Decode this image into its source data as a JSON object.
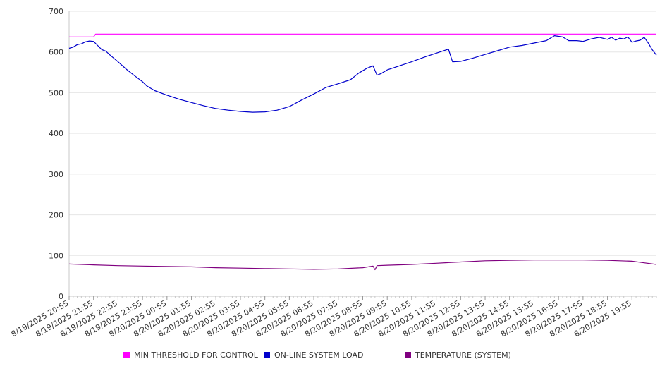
{
  "chart_data": {
    "type": "line",
    "title": "",
    "xlabel": "",
    "ylabel": "",
    "ylim": [
      0,
      700
    ],
    "yticks": [
      0,
      100,
      200,
      300,
      400,
      500,
      600,
      700
    ],
    "grid": true,
    "legend_position": "bottom",
    "x_start": "8/19/2025 20:55",
    "x_end": "8/20/2025 20:55",
    "x_tick_labels": [
      "8/19/2025 20:55",
      "8/19/2025 21:55",
      "8/19/2025 22:55",
      "8/19/2025 23:55",
      "8/20/2025 00:55",
      "8/20/2025 01:55",
      "8/20/2025 02:55",
      "8/20/2025 03:55",
      "8/20/2025 04:55",
      "8/20/2025 05:55",
      "8/20/2025 06:55",
      "8/20/2025 07:55",
      "8/20/2025 08:55",
      "8/20/2025 09:55",
      "8/20/2025 10:55",
      "8/20/2025 11:55",
      "8/20/2025 12:55",
      "8/20/2025 13:55",
      "8/20/2025 14:55",
      "8/20/2025 15:55",
      "8/20/2025 16:55",
      "8/20/2025 17:55",
      "8/20/2025 18:55",
      "8/20/2025 19:55"
    ],
    "series": [
      {
        "name": "MIN THRESHOLD FOR CONTROL",
        "color": "#ff00ff",
        "points": [
          [
            "8/19/2025 20:55",
            637
          ],
          [
            "8/19/2025 21:55",
            637
          ],
          [
            "8/19/2025 22:00",
            644
          ],
          [
            "8/20/2025 20:55",
            644
          ]
        ]
      },
      {
        "name": "ON-LINE SYSTEM LOAD",
        "color": "#0000cc",
        "points": [
          [
            "8/19/2025 20:55",
            609
          ],
          [
            "8/19/2025 21:05",
            612
          ],
          [
            "8/19/2025 21:15",
            618
          ],
          [
            "8/19/2025 21:25",
            620
          ],
          [
            "8/19/2025 21:35",
            625
          ],
          [
            "8/19/2025 21:45",
            627
          ],
          [
            "8/19/2025 21:55",
            626
          ],
          [
            "8/19/2025 22:05",
            616
          ],
          [
            "8/19/2025 22:15",
            606
          ],
          [
            "8/19/2025 22:25",
            602
          ],
          [
            "8/19/2025 22:35",
            593
          ],
          [
            "8/19/2025 22:55",
            576
          ],
          [
            "8/19/2025 23:15",
            558
          ],
          [
            "8/19/2025 23:35",
            542
          ],
          [
            "8/19/2025 23:55",
            527
          ],
          [
            "8/20/2025 00:05",
            517
          ],
          [
            "8/20/2025 00:25",
            505
          ],
          [
            "8/20/2025 00:55",
            494
          ],
          [
            "8/20/2025 01:25",
            484
          ],
          [
            "8/20/2025 01:55",
            476
          ],
          [
            "8/20/2025 02:25",
            468
          ],
          [
            "8/20/2025 02:55",
            461
          ],
          [
            "8/20/2025 03:25",
            457
          ],
          [
            "8/20/2025 03:55",
            454
          ],
          [
            "8/20/2025 04:25",
            452
          ],
          [
            "8/20/2025 04:55",
            453
          ],
          [
            "8/20/2025 05:25",
            457
          ],
          [
            "8/20/2025 05:55",
            466
          ],
          [
            "8/20/2025 06:25",
            482
          ],
          [
            "8/20/2025 06:55",
            497
          ],
          [
            "8/20/2025 07:25",
            513
          ],
          [
            "8/20/2025 07:55",
            522
          ],
          [
            "8/20/2025 08:25",
            532
          ],
          [
            "8/20/2025 08:45",
            548
          ],
          [
            "8/20/2025 09:05",
            560
          ],
          [
            "8/20/2025 09:20",
            566
          ],
          [
            "8/20/2025 09:30",
            543
          ],
          [
            "8/20/2025 09:40",
            547
          ],
          [
            "8/20/2025 09:55",
            556
          ],
          [
            "8/20/2025 10:25",
            566
          ],
          [
            "8/20/2025 10:55",
            576
          ],
          [
            "8/20/2025 11:25",
            587
          ],
          [
            "8/20/2025 11:55",
            597
          ],
          [
            "8/20/2025 12:10",
            602
          ],
          [
            "8/20/2025 12:25",
            607
          ],
          [
            "8/20/2025 12:35",
            576
          ],
          [
            "8/20/2025 12:55",
            577
          ],
          [
            "8/20/2025 13:25",
            585
          ],
          [
            "8/20/2025 13:55",
            594
          ],
          [
            "8/20/2025 14:25",
            603
          ],
          [
            "8/20/2025 14:55",
            612
          ],
          [
            "8/20/2025 15:25",
            616
          ],
          [
            "8/20/2025 15:55",
            622
          ],
          [
            "8/20/2025 16:25",
            628
          ],
          [
            "8/20/2025 16:45",
            640
          ],
          [
            "8/20/2025 17:05",
            637
          ],
          [
            "8/20/2025 17:20",
            628
          ],
          [
            "8/20/2025 17:40",
            628
          ],
          [
            "8/20/2025 17:55",
            626
          ],
          [
            "8/20/2025 18:15",
            632
          ],
          [
            "8/20/2025 18:35",
            636
          ],
          [
            "8/20/2025 18:55",
            631
          ],
          [
            "8/20/2025 19:05",
            636
          ],
          [
            "8/20/2025 19:15",
            629
          ],
          [
            "8/20/2025 19:25",
            634
          ],
          [
            "8/20/2025 19:35",
            632
          ],
          [
            "8/20/2025 19:45",
            637
          ],
          [
            "8/20/2025 19:55",
            624
          ],
          [
            "8/20/2025 20:05",
            627
          ],
          [
            "8/20/2025 20:15",
            629
          ],
          [
            "8/20/2025 20:25",
            636
          ],
          [
            "8/20/2025 20:35",
            622
          ],
          [
            "8/20/2025 20:45",
            605
          ],
          [
            "8/20/2025 20:55",
            592
          ]
        ]
      },
      {
        "name": "TEMPERATURE (SYSTEM)",
        "color": "#800080",
        "points": [
          [
            "8/19/2025 20:55",
            79
          ],
          [
            "8/19/2025 21:55",
            77
          ],
          [
            "8/19/2025 22:55",
            75
          ],
          [
            "8/19/2025 23:55",
            74
          ],
          [
            "8/20/2025 00:55",
            73
          ],
          [
            "8/20/2025 01:55",
            72
          ],
          [
            "8/20/2025 02:55",
            70
          ],
          [
            "8/20/2025 03:55",
            69
          ],
          [
            "8/20/2025 04:55",
            68
          ],
          [
            "8/20/2025 05:55",
            67
          ],
          [
            "8/20/2025 06:55",
            66
          ],
          [
            "8/20/2025 07:55",
            67
          ],
          [
            "8/20/2025 08:55",
            70
          ],
          [
            "8/20/2025 09:20",
            74
          ],
          [
            "8/20/2025 09:25",
            65
          ],
          [
            "8/20/2025 09:30",
            75
          ],
          [
            "8/20/2025 09:55",
            76
          ],
          [
            "8/20/2025 10:55",
            78
          ],
          [
            "8/20/2025 11:55",
            81
          ],
          [
            "8/20/2025 12:55",
            84
          ],
          [
            "8/20/2025 13:55",
            87
          ],
          [
            "8/20/2025 14:55",
            88
          ],
          [
            "8/20/2025 15:55",
            89
          ],
          [
            "8/20/2025 16:55",
            89
          ],
          [
            "8/20/2025 17:55",
            89
          ],
          [
            "8/20/2025 18:55",
            88
          ],
          [
            "8/20/2025 19:55",
            86
          ],
          [
            "8/20/2025 20:25",
            82
          ],
          [
            "8/20/2025 20:55",
            78
          ]
        ]
      }
    ]
  },
  "legend": {
    "items": [
      {
        "label": "MIN THRESHOLD FOR CONTROL",
        "color": "#ff00ff"
      },
      {
        "label": "ON-LINE SYSTEM LOAD",
        "color": "#0000cc"
      },
      {
        "label": "TEMPERATURE (SYSTEM)",
        "color": "#800080"
      }
    ]
  }
}
